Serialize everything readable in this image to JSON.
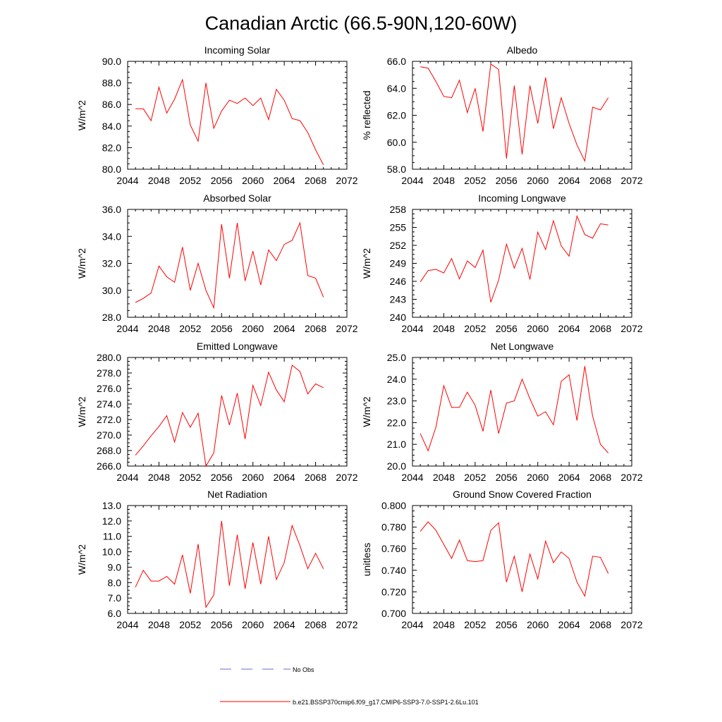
{
  "page_title": "Canadian Arctic (66.5-90N,120-60W)",
  "colors": {
    "series": "#ff0000",
    "obs": "#6a6ad8",
    "axis": "#000000"
  },
  "legend": {
    "obs_label": "No Obs",
    "series_label": "b.e21.BSSP370cmip6.f09_g17.CMIP6-SSP3-7.0-SSP1-2.6Lu.101"
  },
  "chart_data": [
    {
      "type": "line",
      "title": "Incoming Solar",
      "ylabel": "W/m^2",
      "xlim": [
        2044,
        2072
      ],
      "ylim": [
        80,
        90
      ],
      "xticks": [
        2044,
        2048,
        2052,
        2056,
        2060,
        2064,
        2068,
        2072
      ],
      "yticks": [
        "80.0",
        "82.0",
        "84.0",
        "86.0",
        "88.0",
        "90.0"
      ],
      "x": [
        2045,
        2046,
        2047,
        2048,
        2049,
        2050,
        2051,
        2052,
        2053,
        2054,
        2055,
        2056,
        2057,
        2058,
        2059,
        2060,
        2061,
        2062,
        2063,
        2064,
        2065,
        2066,
        2067,
        2068,
        2069
      ],
      "values": [
        85.6,
        85.6,
        84.5,
        87.6,
        85.2,
        86.5,
        88.3,
        84.1,
        82.6,
        88.0,
        83.8,
        85.4,
        86.4,
        86.1,
        86.6,
        85.9,
        86.6,
        84.6,
        87.4,
        86.4,
        84.7,
        84.5,
        83.4,
        81.8,
        80.4
      ]
    },
    {
      "type": "line",
      "title": "Albedo",
      "ylabel": "% reflected",
      "xlim": [
        2044,
        2072
      ],
      "ylim": [
        58,
        66
      ],
      "xticks": [
        2044,
        2048,
        2052,
        2056,
        2060,
        2064,
        2068,
        2072
      ],
      "yticks": [
        "58.0",
        "60.0",
        "62.0",
        "64.0",
        "66.0"
      ],
      "x": [
        2045,
        2046,
        2047,
        2048,
        2049,
        2050,
        2051,
        2052,
        2053,
        2054,
        2055,
        2056,
        2057,
        2058,
        2059,
        2060,
        2061,
        2062,
        2063,
        2064,
        2065,
        2066,
        2067,
        2068,
        2069
      ],
      "values": [
        65.6,
        65.5,
        64.5,
        63.4,
        63.3,
        64.6,
        62.2,
        64.0,
        60.8,
        65.8,
        65.4,
        58.8,
        64.2,
        59.1,
        64.2,
        61.4,
        64.8,
        61.0,
        63.3,
        61.4,
        59.8,
        58.6,
        62.6,
        62.4,
        63.3
      ]
    },
    {
      "type": "line",
      "title": "Absorbed Solar",
      "ylabel": "W/m^2",
      "xlim": [
        2044,
        2072
      ],
      "ylim": [
        28,
        36
      ],
      "xticks": [
        2044,
        2048,
        2052,
        2056,
        2060,
        2064,
        2068,
        2072
      ],
      "yticks": [
        "28.0",
        "30.0",
        "32.0",
        "34.0",
        "36.0"
      ],
      "x": [
        2045,
        2046,
        2047,
        2048,
        2049,
        2050,
        2051,
        2052,
        2053,
        2054,
        2055,
        2056,
        2057,
        2058,
        2059,
        2060,
        2061,
        2062,
        2063,
        2064,
        2065,
        2066,
        2067,
        2068,
        2069
      ],
      "values": [
        29.1,
        29.4,
        29.8,
        31.8,
        31.0,
        30.6,
        33.2,
        30.0,
        32.0,
        30.0,
        28.7,
        34.9,
        30.9,
        35.0,
        30.7,
        32.9,
        30.4,
        33.0,
        32.2,
        33.4,
        33.7,
        35.0,
        31.1,
        30.9,
        29.5
      ]
    },
    {
      "type": "line",
      "title": "Incoming Longwave",
      "ylabel": "W/m^2",
      "xlim": [
        2044,
        2072
      ],
      "ylim": [
        240,
        258
      ],
      "xticks": [
        2044,
        2048,
        2052,
        2056,
        2060,
        2064,
        2068,
        2072
      ],
      "yticks": [
        "240",
        "243",
        "246",
        "249",
        "252",
        "255",
        "258"
      ],
      "x": [
        2045,
        2046,
        2047,
        2048,
        2049,
        2050,
        2051,
        2052,
        2053,
        2054,
        2055,
        2056,
        2057,
        2058,
        2059,
        2060,
        2061,
        2062,
        2063,
        2064,
        2065,
        2066,
        2067,
        2068,
        2069
      ],
      "values": [
        245.9,
        247.8,
        248.0,
        247.4,
        249.8,
        246.4,
        249.4,
        248.3,
        251.2,
        242.5,
        246.2,
        252.2,
        248.2,
        251.5,
        246.3,
        254.2,
        251.3,
        256.1,
        251.9,
        250.2,
        256.9,
        253.8,
        253.2,
        255.6,
        255.4
      ]
    },
    {
      "type": "line",
      "title": "Emitted Longwave",
      "ylabel": "W/m^2",
      "xlim": [
        2044,
        2072
      ],
      "ylim": [
        266,
        280
      ],
      "xticks": [
        2044,
        2048,
        2052,
        2056,
        2060,
        2064,
        2068,
        2072
      ],
      "yticks": [
        "266.0",
        "268.0",
        "270.0",
        "272.0",
        "274.0",
        "276.0",
        "278.0",
        "280.0"
      ],
      "x": [
        2045,
        2046,
        2047,
        2048,
        2049,
        2050,
        2051,
        2052,
        2053,
        2054,
        2055,
        2056,
        2057,
        2058,
        2059,
        2060,
        2061,
        2062,
        2063,
        2064,
        2065,
        2066,
        2067,
        2068,
        2069
      ],
      "values": [
        267.4,
        268.6,
        269.9,
        271.1,
        272.5,
        269.1,
        272.9,
        271.0,
        272.8,
        266.0,
        267.7,
        275.1,
        271.3,
        275.4,
        269.5,
        276.4,
        273.8,
        278.1,
        275.8,
        274.3,
        279.0,
        278.2,
        275.3,
        276.6,
        276.1
      ]
    },
    {
      "type": "line",
      "title": "Net Longwave",
      "ylabel": "W/m^2",
      "xlim": [
        2044,
        2072
      ],
      "ylim": [
        20,
        25
      ],
      "xticks": [
        2044,
        2048,
        2052,
        2056,
        2060,
        2064,
        2068,
        2072
      ],
      "yticks": [
        "20.0",
        "21.0",
        "22.0",
        "23.0",
        "24.0",
        "25.0"
      ],
      "x": [
        2045,
        2046,
        2047,
        2048,
        2049,
        2050,
        2051,
        2052,
        2053,
        2054,
        2055,
        2056,
        2057,
        2058,
        2059,
        2060,
        2061,
        2062,
        2063,
        2064,
        2065,
        2066,
        2067,
        2068,
        2069
      ],
      "values": [
        21.5,
        20.7,
        21.8,
        23.7,
        22.7,
        22.7,
        23.4,
        22.8,
        21.6,
        23.5,
        21.5,
        22.9,
        23.0,
        24.0,
        23.1,
        22.3,
        22.5,
        21.9,
        23.9,
        24.2,
        22.1,
        24.6,
        22.3,
        21.0,
        20.6
      ]
    },
    {
      "type": "line",
      "title": "Net Radiation",
      "ylabel": "W/m^2",
      "xlim": [
        2044,
        2072
      ],
      "ylim": [
        6,
        13
      ],
      "xticks": [
        2044,
        2048,
        2052,
        2056,
        2060,
        2064,
        2068,
        2072
      ],
      "yticks": [
        "6.0",
        "7.0",
        "8.0",
        "9.0",
        "10.0",
        "11.0",
        "12.0",
        "13.0"
      ],
      "x": [
        2045,
        2046,
        2047,
        2048,
        2049,
        2050,
        2051,
        2052,
        2053,
        2054,
        2055,
        2056,
        2057,
        2058,
        2059,
        2060,
        2061,
        2062,
        2063,
        2064,
        2065,
        2066,
        2067,
        2068,
        2069
      ],
      "values": [
        7.7,
        8.8,
        8.1,
        8.1,
        8.4,
        7.9,
        9.8,
        7.3,
        10.5,
        6.4,
        7.2,
        12.0,
        7.8,
        11.1,
        7.6,
        10.6,
        7.9,
        11.0,
        8.2,
        9.3,
        11.7,
        10.4,
        8.9,
        9.9,
        8.9
      ]
    },
    {
      "type": "line",
      "title": "Ground Snow Covered Fraction",
      "ylabel": "unitless",
      "xlim": [
        2044,
        2072
      ],
      "ylim": [
        0.7,
        0.8
      ],
      "xticks": [
        2044,
        2048,
        2052,
        2056,
        2060,
        2064,
        2068,
        2072
      ],
      "yticks": [
        "0.700",
        "0.720",
        "0.740",
        "0.760",
        "0.780",
        "0.800"
      ],
      "x": [
        2045,
        2046,
        2047,
        2048,
        2049,
        2050,
        2051,
        2052,
        2053,
        2054,
        2055,
        2056,
        2057,
        2058,
        2059,
        2060,
        2061,
        2062,
        2063,
        2064,
        2065,
        2066,
        2067,
        2068,
        2069
      ],
      "values": [
        0.776,
        0.785,
        0.777,
        0.764,
        0.751,
        0.768,
        0.749,
        0.748,
        0.749,
        0.777,
        0.784,
        0.729,
        0.753,
        0.72,
        0.755,
        0.732,
        0.767,
        0.747,
        0.757,
        0.751,
        0.729,
        0.716,
        0.753,
        0.752,
        0.737
      ]
    }
  ]
}
